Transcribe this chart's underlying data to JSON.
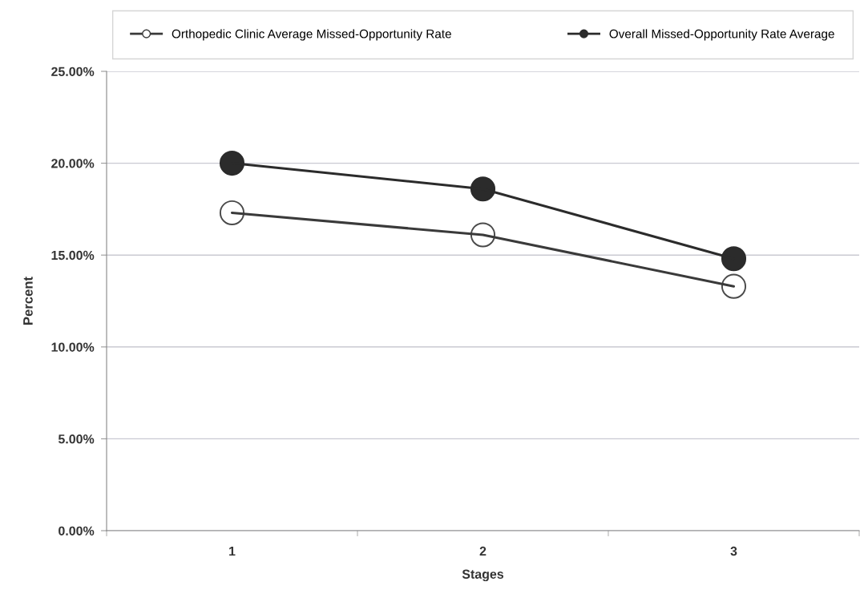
{
  "chart_data": {
    "type": "line",
    "xlabel": "Stages",
    "ylabel": "Percent",
    "categories": [
      "1",
      "2",
      "3"
    ],
    "series": [
      {
        "name": "Orthopedic Clinic Average Missed-Opportunity Rate",
        "color": "#3a3a3a",
        "colors": [
          "#ffffff",
          "#ffffff",
          "#ffffff"
        ],
        "values": [
          17.3,
          16.1,
          13.3
        ]
      },
      {
        "name": "Overall Missed-Opportunity Rate Average",
        "color": "#2b2b2b",
        "values": [
          20.0,
          18.6,
          14.8
        ]
      }
    ],
    "ylim": [
      0,
      25
    ],
    "yticks": [
      {
        "value": 0,
        "label": "0.00%"
      },
      {
        "value": 5,
        "label": "5.00%"
      },
      {
        "value": 10,
        "label": "10.00%"
      },
      {
        "value": 15,
        "label": "15.00%"
      },
      {
        "value": 20,
        "label": "20.00%"
      },
      {
        "value": 25,
        "label": "25.00%"
      }
    ],
    "grid": "y",
    "legend": "top",
    "marker": "circle",
    "line_style": "solid"
  }
}
